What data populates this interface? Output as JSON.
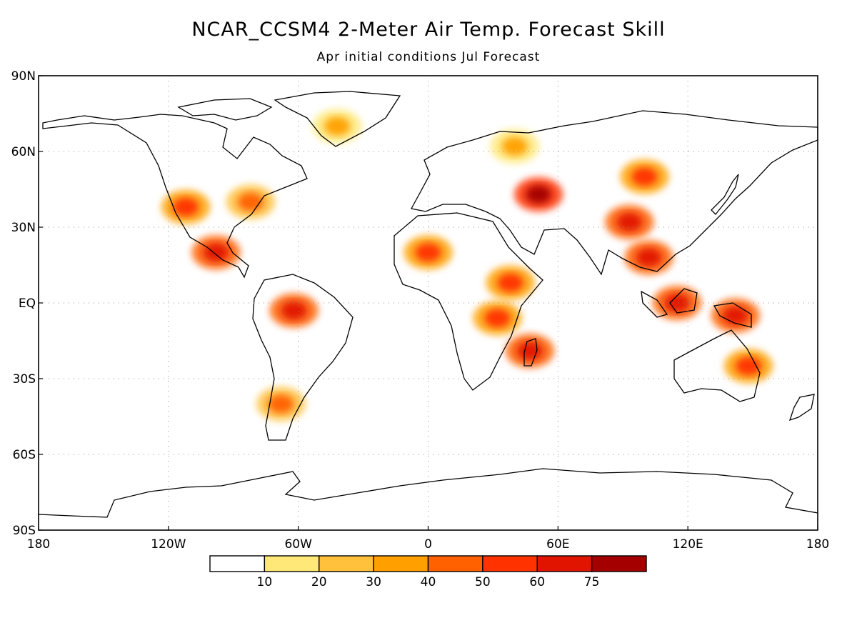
{
  "title": "NCAR_CCSM4 2-Meter Air Temp. Forecast Skill",
  "subtitle": "Apr initial conditions  Jul Forecast",
  "map": {
    "projection": "equirectangular",
    "lon_range": [
      -180,
      180
    ],
    "lat_range": [
      -90,
      90
    ],
    "gridlines": "dotted",
    "lon_ticks": [
      "180",
      "120W",
      "60W",
      "0",
      "60E",
      "120E",
      "180"
    ],
    "lat_ticks": [
      "90N",
      "60N",
      "30N",
      "EQ",
      "30S",
      "60S",
      "90S"
    ],
    "coastline_color": "#000000"
  },
  "colorbar": {
    "colors": [
      "#ffffff",
      "#ffe878",
      "#ffc03c",
      "#ffa000",
      "#ff6000",
      "#ff3200",
      "#e11400",
      "#a50000"
    ],
    "labels": [
      "10",
      "20",
      "30",
      "40",
      "50",
      "60",
      "75"
    ]
  },
  "chart_data": {
    "type": "heatmap",
    "title": "NCAR_CCSM4 2-Meter Air Temp. Forecast Skill",
    "subtitle": "Apr initial conditions  Jul Forecast",
    "x_range": [
      -180,
      180
    ],
    "y_range": [
      -90,
      90
    ],
    "levels": [
      10,
      20,
      30,
      40,
      50,
      60,
      75
    ],
    "hotspots": [
      {
        "region": "Amazon basin",
        "lon": -62,
        "lat": -3,
        "level": 60
      },
      {
        "region": "Central America / Mexico",
        "lon": -98,
        "lat": 20,
        "level": 60
      },
      {
        "region": "Western United States",
        "lon": -112,
        "lat": 38,
        "level": 50
      },
      {
        "region": "Eastern United States",
        "lon": -82,
        "lat": 40,
        "level": 40
      },
      {
        "region": "Greenland",
        "lon": -42,
        "lat": 70,
        "level": 30
      },
      {
        "region": "Sahara / North Africa",
        "lon": 0,
        "lat": 20,
        "level": 50
      },
      {
        "region": "Ethiopia",
        "lon": 38,
        "lat": 8,
        "level": 50
      },
      {
        "region": "East Africa / Tanzania",
        "lon": 32,
        "lat": -6,
        "level": 50
      },
      {
        "region": "Madagascar",
        "lon": 47,
        "lat": -19,
        "level": 60
      },
      {
        "region": "Caspian region",
        "lon": 51,
        "lat": 43,
        "level": 75
      },
      {
        "region": "Tibetan Plateau / China",
        "lon": 93,
        "lat": 32,
        "level": 60
      },
      {
        "region": "Mongolia / Siberia",
        "lon": 100,
        "lat": 50,
        "level": 50
      },
      {
        "region": "Indochina",
        "lon": 102,
        "lat": 18,
        "level": 60
      },
      {
        "region": "Borneo / Maritime Continent",
        "lon": 115,
        "lat": 0,
        "level": 60
      },
      {
        "region": "New Guinea",
        "lon": 142,
        "lat": -5,
        "level": 60
      },
      {
        "region": "Eastern Australia",
        "lon": 148,
        "lat": -25,
        "level": 50
      },
      {
        "region": "Southern South America",
        "lon": -68,
        "lat": -40,
        "level": 40
      },
      {
        "region": "Europe / Northern Eurasia",
        "lon": 40,
        "lat": 62,
        "level": 30
      }
    ]
  }
}
